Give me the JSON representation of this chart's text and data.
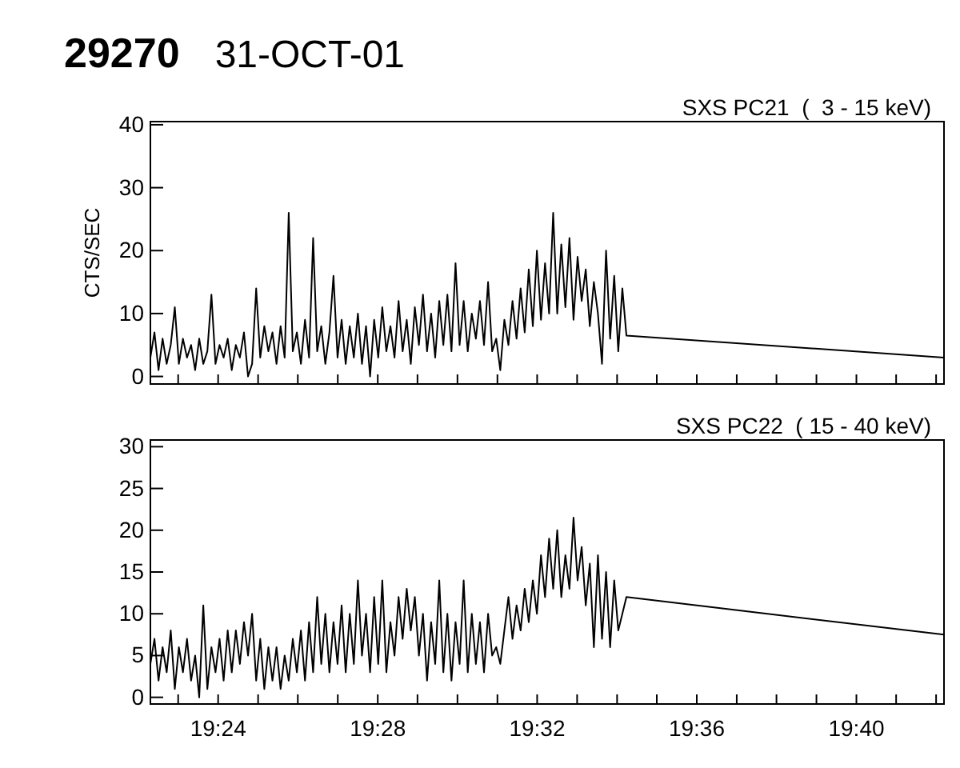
{
  "chart_data": [
    {
      "type": "line",
      "title": "SXS PC21  (  3 - 15 keV)",
      "x": [
        19.3717,
        19.3734,
        19.3751,
        19.3768,
        19.3785,
        19.3802,
        19.3819,
        19.3836,
        19.3853,
        19.387,
        19.3887,
        19.3904,
        19.3921,
        19.3938,
        19.3955,
        19.3972,
        19.3989,
        19.4006,
        19.4023,
        19.404,
        19.4057,
        19.4074,
        19.4091,
        19.4108,
        19.4125,
        19.4142,
        19.4159,
        19.4176,
        19.4193,
        19.421,
        19.4227,
        19.4244,
        19.4261,
        19.4278,
        19.4295,
        19.4312,
        19.4329,
        19.4346,
        19.4363,
        19.438,
        19.4397,
        19.4414,
        19.4431,
        19.4448,
        19.4465,
        19.4482,
        19.4499,
        19.4516,
        19.4533,
        19.455,
        19.4567,
        19.4584,
        19.4601,
        19.4618,
        19.4635,
        19.4652,
        19.4669,
        19.4686,
        19.4703,
        19.472,
        19.4737,
        19.4754,
        19.4771,
        19.4788,
        19.4805,
        19.4822,
        19.4839,
        19.4856,
        19.4873,
        19.489,
        19.4907,
        19.4924,
        19.4941,
        19.4958,
        19.4975,
        19.4992,
        19.5009,
        19.5026,
        19.5043,
        19.506,
        19.5077,
        19.5094,
        19.5111,
        19.5128,
        19.5145,
        19.5162,
        19.5179,
        19.5196,
        19.5213,
        19.523,
        19.5247,
        19.5264,
        19.5281,
        19.5298,
        19.5315,
        19.5332,
        19.5349,
        19.5366,
        19.5383,
        19.54,
        19.5417,
        19.5434,
        19.5451,
        19.5468,
        19.5485,
        19.5502,
        19.5519,
        19.5536,
        19.5553,
        19.557,
        19.5587,
        19.5604,
        19.5621,
        19.5638,
        19.5655,
        19.5672,
        19.5689,
        19.5706,
        19.7033
      ],
      "ylabel": "CTS/SEC",
      "annotations": [
        "29270",
        "31-OCT-01"
      ],
      "xlim": [
        19.3717,
        19.7033
      ],
      "ylim": [
        -1.2,
        40.5
      ],
      "yticks": [
        0,
        10,
        20,
        30,
        40
      ],
      "tick_labels": "y",
      "xticks": [
        {
          "value": 19.3833,
          "label": null
        },
        {
          "value": 19.4,
          "label": null
        },
        {
          "value": 19.4167,
          "label": null
        },
        {
          "value": 19.4333,
          "label": null
        },
        {
          "value": 19.45,
          "label": null
        },
        {
          "value": 19.4667,
          "label": null
        },
        {
          "value": 19.4833,
          "label": null
        },
        {
          "value": 19.5,
          "label": null
        },
        {
          "value": 19.5167,
          "label": null
        },
        {
          "value": 19.5333,
          "label": null
        },
        {
          "value": 19.55,
          "label": null
        },
        {
          "value": 19.5667,
          "label": null
        },
        {
          "value": 19.5833,
          "label": null
        },
        {
          "value": 19.6,
          "label": null
        },
        {
          "value": 19.6167,
          "label": null
        },
        {
          "value": 19.6333,
          "label": null
        },
        {
          "value": 19.65,
          "label": null
        },
        {
          "value": 19.6667,
          "label": null
        },
        {
          "value": 19.6833,
          "label": null
        },
        {
          "value": 19.7,
          "label": null
        }
      ],
      "series": [
        {
          "color": "#000000",
          "values": [
            3,
            7,
            1,
            6,
            2,
            5,
            11,
            2,
            6,
            3,
            5,
            1,
            6,
            2,
            4,
            13,
            2,
            5,
            3,
            6,
            1,
            5,
            3,
            7,
            0,
            2,
            14,
            3,
            8,
            4,
            7,
            2,
            8,
            3,
            26,
            4,
            7,
            2,
            9,
            3,
            22,
            4,
            8,
            2,
            7,
            16,
            3,
            9,
            2,
            8,
            3,
            10,
            2,
            8,
            0,
            9,
            3,
            11,
            4,
            8,
            3,
            12,
            4,
            9,
            2,
            11,
            5,
            13,
            4,
            10,
            3,
            12,
            5,
            13,
            4,
            18,
            5,
            12,
            4,
            10,
            6,
            12,
            5,
            15,
            4,
            6,
            1,
            9,
            5,
            12,
            6,
            14,
            7,
            17,
            8,
            20,
            9,
            18,
            10,
            26,
            10,
            21,
            11,
            22,
            9,
            19,
            12,
            17,
            8,
            15,
            10,
            2,
            20,
            6,
            16,
            4,
            14,
            6.5,
            3
          ]
        }
      ]
    },
    {
      "type": "line",
      "title": "SXS PC22  ( 15 - 40 keV)",
      "x": [
        19.3717,
        19.3734,
        19.3751,
        19.3768,
        19.3785,
        19.3802,
        19.3819,
        19.3836,
        19.3853,
        19.387,
        19.3887,
        19.3904,
        19.3921,
        19.3938,
        19.3955,
        19.3972,
        19.3989,
        19.4006,
        19.4023,
        19.404,
        19.4057,
        19.4074,
        19.4091,
        19.4108,
        19.4125,
        19.4142,
        19.4159,
        19.4176,
        19.4193,
        19.421,
        19.4227,
        19.4244,
        19.4261,
        19.4278,
        19.4295,
        19.4312,
        19.4329,
        19.4346,
        19.4363,
        19.438,
        19.4397,
        19.4414,
        19.4431,
        19.4448,
        19.4465,
        19.4482,
        19.4499,
        19.4516,
        19.4533,
        19.455,
        19.4567,
        19.4584,
        19.4601,
        19.4618,
        19.4635,
        19.4652,
        19.4669,
        19.4686,
        19.4703,
        19.472,
        19.4737,
        19.4754,
        19.4771,
        19.4788,
        19.4805,
        19.4822,
        19.4839,
        19.4856,
        19.4873,
        19.489,
        19.4907,
        19.4924,
        19.4941,
        19.4958,
        19.4975,
        19.4992,
        19.5009,
        19.5026,
        19.5043,
        19.506,
        19.5077,
        19.5094,
        19.5111,
        19.5128,
        19.5145,
        19.5162,
        19.5179,
        19.5196,
        19.5213,
        19.523,
        19.5247,
        19.5264,
        19.5281,
        19.5298,
        19.5315,
        19.5332,
        19.5349,
        19.5366,
        19.5383,
        19.54,
        19.5417,
        19.5434,
        19.5451,
        19.5468,
        19.5485,
        19.5502,
        19.5519,
        19.5536,
        19.5553,
        19.557,
        19.5587,
        19.5604,
        19.5621,
        19.5638,
        19.5655,
        19.5672,
        19.5689,
        19.5706,
        19.7033
      ],
      "xlim": [
        19.3717,
        19.7033
      ],
      "ylim": [
        -0.8,
        30.8
      ],
      "yticks": [
        0,
        5,
        10,
        15,
        20,
        25,
        30
      ],
      "xticks": [
        {
          "value": 19.3833,
          "label": null
        },
        {
          "value": 19.4,
          "label": "19:24"
        },
        {
          "value": 19.4167,
          "label": null
        },
        {
          "value": 19.4333,
          "label": null
        },
        {
          "value": 19.45,
          "label": null
        },
        {
          "value": 19.4667,
          "label": "19:28"
        },
        {
          "value": 19.4833,
          "label": null
        },
        {
          "value": 19.5,
          "label": null
        },
        {
          "value": 19.5167,
          "label": null
        },
        {
          "value": 19.5333,
          "label": "19:32"
        },
        {
          "value": 19.55,
          "label": null
        },
        {
          "value": 19.5667,
          "label": null
        },
        {
          "value": 19.5833,
          "label": null
        },
        {
          "value": 19.6,
          "label": "19:36"
        },
        {
          "value": 19.6167,
          "label": null
        },
        {
          "value": 19.6333,
          "label": null
        },
        {
          "value": 19.65,
          "label": null
        },
        {
          "value": 19.6667,
          "label": "19:40"
        },
        {
          "value": 19.6833,
          "label": null
        },
        {
          "value": 19.7,
          "label": null
        }
      ],
      "series": [
        {
          "color": "#000000",
          "values": [
            4,
            7,
            2,
            6,
            3,
            8,
            1,
            6,
            3,
            7,
            2,
            5,
            0,
            11,
            1,
            6,
            3,
            7,
            2,
            8,
            3,
            8,
            4,
            9,
            5,
            10,
            2,
            7,
            1,
            6,
            2,
            6,
            1,
            5,
            2,
            7,
            3,
            8,
            2,
            9,
            3,
            12,
            4,
            10,
            3,
            9,
            4,
            11,
            3,
            10,
            4,
            14,
            5,
            10,
            3,
            12,
            4,
            14,
            3,
            9,
            5,
            12,
            7,
            13,
            8,
            12,
            5,
            10,
            2,
            9,
            4,
            14,
            3,
            10,
            2,
            9,
            4,
            14,
            3,
            10,
            4,
            9,
            3,
            10,
            5,
            6,
            4,
            8,
            12,
            7,
            11,
            8,
            13,
            9,
            14,
            10,
            17,
            12,
            19,
            13,
            20,
            12,
            17,
            13,
            21.5,
            14,
            18,
            11,
            16,
            6,
            17,
            7,
            15,
            6,
            14,
            8,
            10,
            12,
            7.5
          ]
        }
      ]
    }
  ]
}
